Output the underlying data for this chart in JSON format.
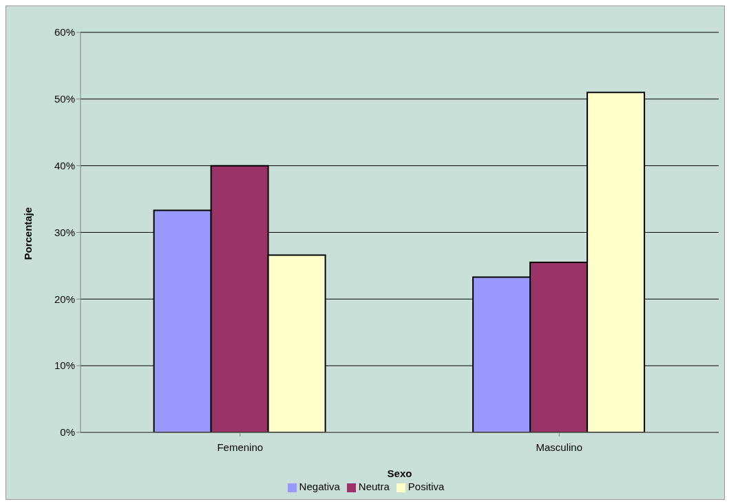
{
  "chart_data": {
    "type": "bar",
    "xlabel": "Sexo",
    "ylabel": "Porcentaje",
    "categories": [
      "Femenino",
      "Masculino"
    ],
    "series": [
      {
        "name": "Negativa",
        "color": "#9999ff",
        "values": [
          33.3,
          23.3
        ]
      },
      {
        "name": "Neutra",
        "color": "#993366",
        "values": [
          40.0,
          25.5
        ]
      },
      {
        "name": "Positiva",
        "color": "#ffffcc",
        "values": [
          26.6,
          51.0
        ]
      }
    ],
    "ylim": [
      0,
      60
    ],
    "yticks": [
      {
        "value": 0,
        "label": "0%"
      },
      {
        "value": 10,
        "label": "10%"
      },
      {
        "value": 20,
        "label": "20%"
      },
      {
        "value": 30,
        "label": "30%"
      },
      {
        "value": 40,
        "label": "40%"
      },
      {
        "value": 50,
        "label": "50%"
      },
      {
        "value": 60,
        "label": "60%"
      }
    ],
    "grid": "y",
    "legend": "bottom"
  }
}
